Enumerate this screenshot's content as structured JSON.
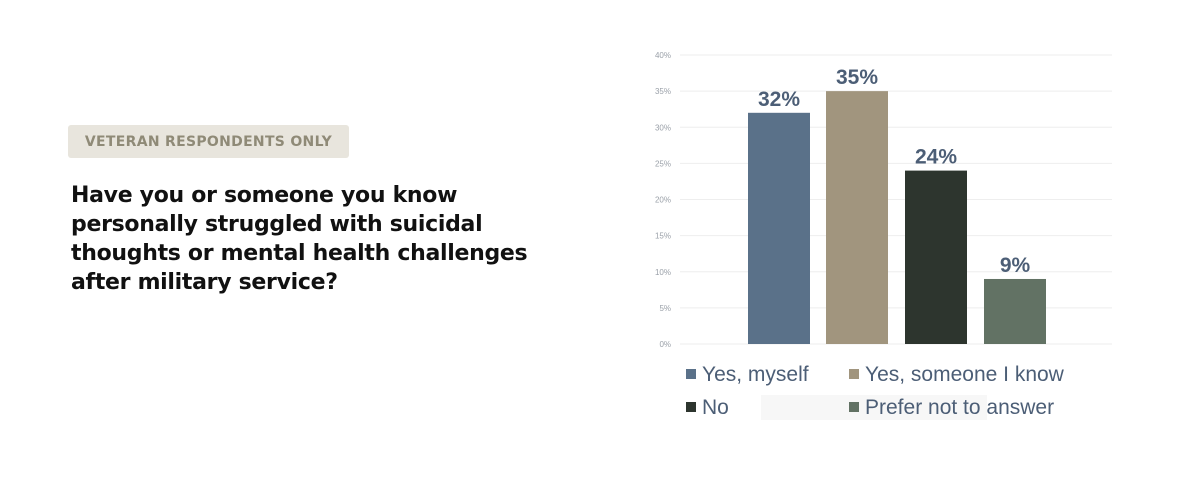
{
  "badge": {
    "label": "VETERAN RESPONDENTS ONLY"
  },
  "question": {
    "text": "Have you or someone you know personally struggled with suicidal thoughts or mental health challenges after military service?"
  },
  "colors": {
    "yes_myself": "#5a7189",
    "yes_someone": "#a1957e",
    "no": "#2d352e",
    "prefer_not": "#627264"
  },
  "chart_data": {
    "type": "bar",
    "categories": [
      "Yes, myself",
      "Yes, someone I know",
      "No",
      "Prefer not to answer"
    ],
    "values": [
      32,
      35,
      24,
      9
    ],
    "data_labels": [
      "32%",
      "35%",
      "24%",
      "9%"
    ],
    "ylim": [
      0,
      40
    ],
    "yticks": [
      0,
      5,
      10,
      15,
      20,
      25,
      30,
      35,
      40
    ],
    "ytick_labels": [
      "0%",
      "5%",
      "10%",
      "15%",
      "20%",
      "25%",
      "30%",
      "35%",
      "40%"
    ],
    "grid": true,
    "legend_position": "bottom",
    "title": "",
    "xlabel": "",
    "ylabel": ""
  }
}
